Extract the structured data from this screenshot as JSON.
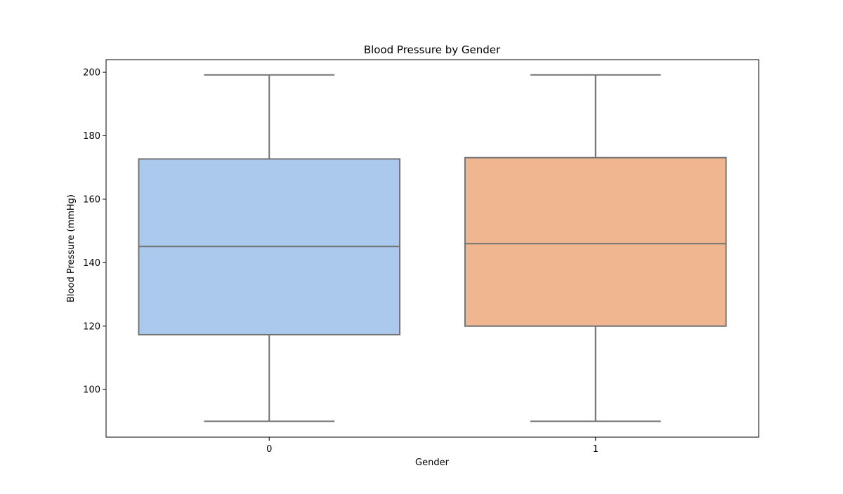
{
  "chart_data": {
    "type": "box",
    "title": "Blood Pressure by Gender",
    "xlabel": "Gender",
    "ylabel": "Blood Pressure (mmHg)",
    "categories": [
      "0",
      "1"
    ],
    "ylim": [
      85,
      204
    ],
    "yticks": [
      100,
      120,
      140,
      160,
      180,
      200
    ],
    "grid": false,
    "legend": "none",
    "boxes": [
      {
        "category": "0",
        "whisker_low": 90,
        "q1": 117.3,
        "median": 145.1,
        "q3": 172.7,
        "whisker_high": 199.2,
        "color": "#abc9ec"
      },
      {
        "category": "1",
        "whisker_low": 90,
        "q1": 120,
        "median": 146,
        "q3": 173.1,
        "whisker_high": 199.2,
        "color": "#f0b690"
      }
    ],
    "line_color": "#737373"
  }
}
